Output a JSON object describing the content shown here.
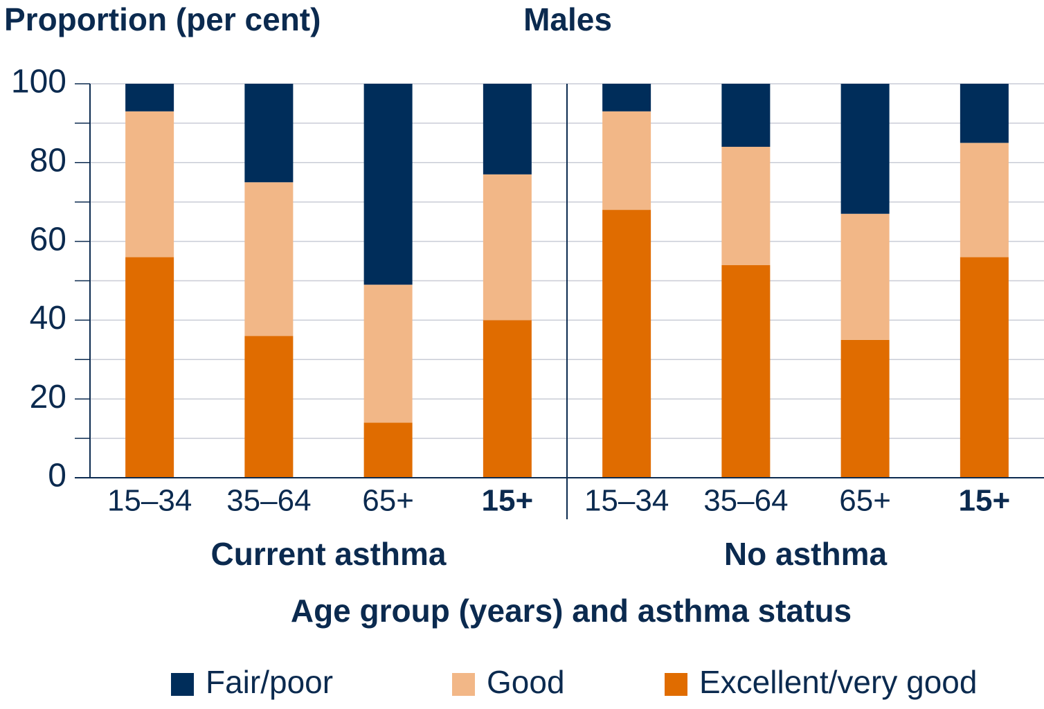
{
  "chart_data": {
    "type": "stacked_bar",
    "title": "Males",
    "y_axis_label": "Proportion (per cent)",
    "x_axis_label": "Age group (years) and asthma status",
    "groups": [
      "Current asthma",
      "No asthma"
    ],
    "categories": [
      "15–34",
      "35–64",
      "65+",
      "15+",
      "15–34",
      "35–64",
      "65+",
      "15+"
    ],
    "series": [
      {
        "name": "Fair/poor",
        "color": "#002d5a",
        "values": [
          7,
          25,
          51,
          23,
          7,
          16,
          33,
          15
        ]
      },
      {
        "name": "Good",
        "color": "#f2b787",
        "values": [
          37,
          39,
          35,
          37,
          25,
          30,
          32,
          29
        ]
      },
      {
        "name": "Excellent/very good",
        "color": "#e06c00",
        "values": [
          56,
          36,
          14,
          40,
          68,
          54,
          35,
          56
        ]
      }
    ],
    "ylim": [
      0,
      100
    ],
    "yticks": [
      0,
      20,
      40,
      60,
      80,
      100
    ],
    "minor_yticks": [
      10,
      30,
      50,
      70,
      90
    ],
    "grid": true,
    "legend": "bottom"
  }
}
